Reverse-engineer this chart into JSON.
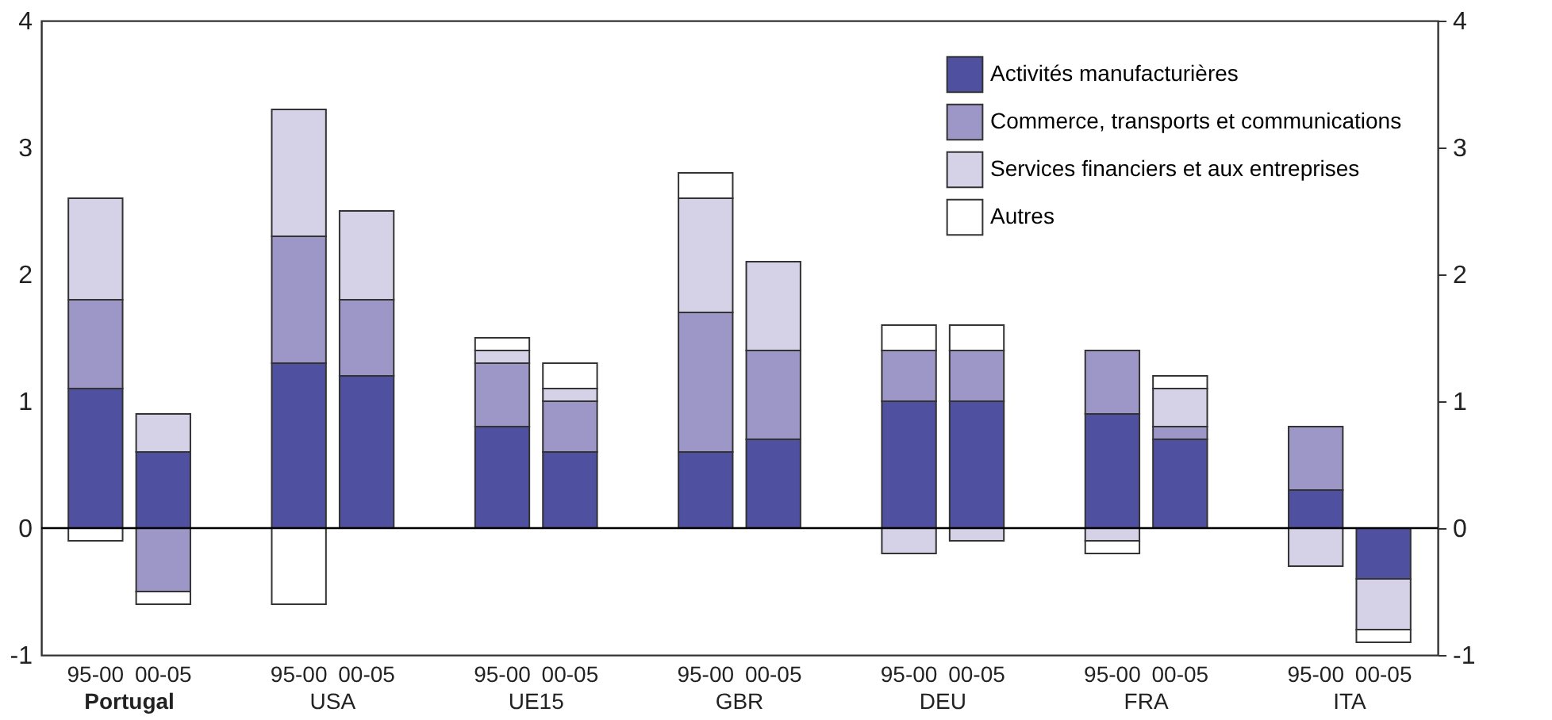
{
  "chart_data": {
    "type": "bar",
    "stacked": true,
    "categories": [
      "95-00",
      "00-05",
      "95-00",
      "00-05",
      "95-00",
      "00-05",
      "95-00",
      "00-05",
      "95-00",
      "00-05",
      "95-00",
      "00-05",
      "95-00",
      "00-05"
    ],
    "annotations": [
      "Portugal",
      "USA",
      "UE15",
      "GBR",
      "DEU",
      "FRA",
      "ITA"
    ],
    "series": [
      {
        "name": "Activités manufacturières",
        "color": "#5050a0",
        "values": [
          1.1,
          0.6,
          1.3,
          1.2,
          0.8,
          0.6,
          0.6,
          0.7,
          1.0,
          1.0,
          0.9,
          0.7,
          0.3,
          -0.4
        ]
      },
      {
        "name": "Commerce, transports et communications",
        "color": "#9d97c8",
        "values": [
          0.7,
          -0.5,
          1.0,
          0.6,
          0.5,
          0.4,
          1.1,
          0.7,
          0.4,
          0.4,
          0.5,
          0.1,
          0.5,
          null
        ]
      },
      {
        "name": "Services financiers et aux entreprises",
        "color": "#d5d2e8",
        "values": [
          0.8,
          0.3,
          1.0,
          0.7,
          0.1,
          0.1,
          0.9,
          0.7,
          -0.2,
          -0.1,
          -0.1,
          0.3,
          -0.3,
          -0.4
        ]
      },
      {
        "name": "Autres",
        "color": "#ffffff",
        "values": [
          -0.1,
          -0.1,
          -0.6,
          null,
          0.1,
          0.2,
          0.2,
          null,
          0.2,
          0.2,
          -0.1,
          0.1,
          null,
          -0.1
        ]
      }
    ],
    "ylim": [
      -1,
      4
    ],
    "yticks": [
      -1,
      0,
      1,
      2,
      3,
      4
    ],
    "y2lim": [
      -1,
      4
    ],
    "y2ticks": [
      -1,
      0,
      1,
      2,
      3,
      4
    ],
    "ref_lines": [
      {
        "axis": "y",
        "value": 0
      }
    ],
    "grid": false,
    "legend": "top right"
  }
}
